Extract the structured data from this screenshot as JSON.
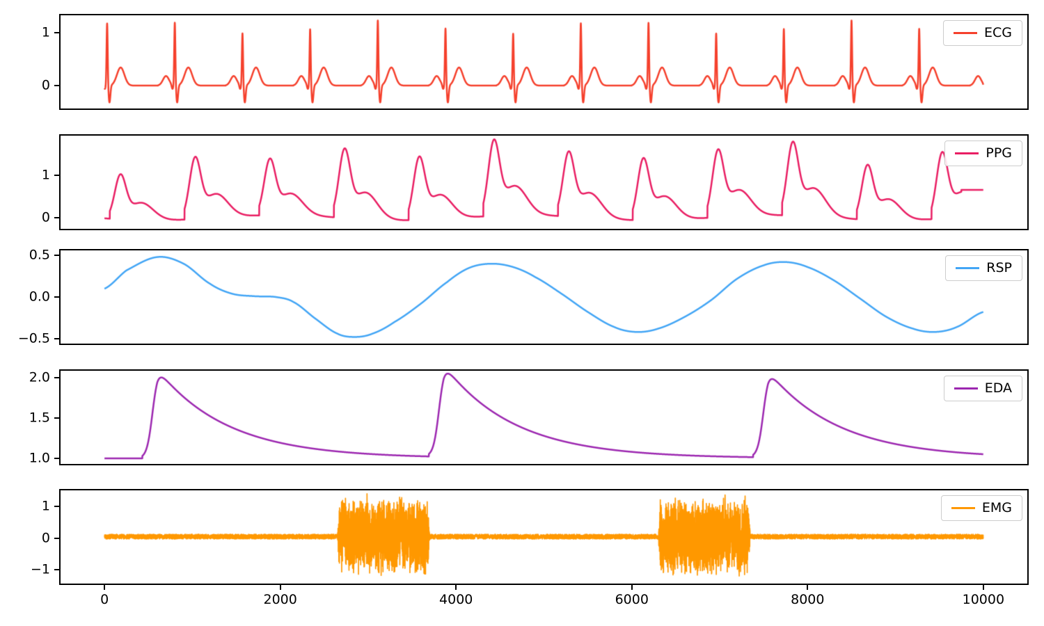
{
  "figure": {
    "background": "#ffffff",
    "n_subplots": 5,
    "kind": "stacked physiological signals (ECG, PPG, RSP, EDA, EMG)"
  },
  "xaxis": {
    "lim": [
      -500,
      10500
    ],
    "data_range": [
      0,
      10000
    ],
    "ticks": [
      0,
      2000,
      4000,
      6000,
      8000,
      10000
    ],
    "tick_labels": [
      "0",
      "2000",
      "4000",
      "6000",
      "8000",
      "10000"
    ]
  },
  "chart_data": [
    {
      "type": "line",
      "legend": "ECG",
      "color": "#F5402C",
      "ylim": [
        -0.43,
        1.32
      ],
      "yticks": [
        0,
        1
      ],
      "ytick_labels": [
        "0",
        "1"
      ],
      "n_points": 10000,
      "signal": {
        "generator": "ecg",
        "period": 770,
        "first_r_peak": 30,
        "r_amp_base": 1.1,
        "r_amp_var": 0.13,
        "p_amp": 0.18,
        "q_amp": -0.08,
        "s_amp": -0.32,
        "t_amp": 0.34
      }
    },
    {
      "type": "line",
      "legend": "PPG",
      "color": "#E91E63",
      "ylim": [
        -0.26,
        1.92
      ],
      "yticks": [
        0,
        1
      ],
      "ytick_labels": [
        "0",
        "1"
      ],
      "n_points": 10000,
      "signal": {
        "generator": "ppg",
        "period": 850,
        "first_peak": 180,
        "peak_amps": [
          1.05,
          1.45,
          1.32,
          1.62,
          1.48,
          1.78,
          1.52,
          1.45,
          1.58,
          1.72,
          1.28,
          1.55
        ],
        "dicrotic_ratio": 0.42,
        "baseline_wiggle": 0.06,
        "flat_from": 9750,
        "flat_value": 0.65
      }
    },
    {
      "type": "line",
      "legend": "RSP",
      "color": "#42A5F5",
      "ylim": [
        -0.56,
        0.56
      ],
      "yticks": [
        -0.5,
        0.0,
        0.5
      ],
      "ytick_labels": [
        "−0.5",
        "0.0",
        "0.5"
      ],
      "n_points": 10000,
      "signal": {
        "generator": "points",
        "points": [
          [
            0,
            0.1
          ],
          [
            250,
            0.32
          ],
          [
            600,
            0.48
          ],
          [
            900,
            0.4
          ],
          [
            1200,
            0.16
          ],
          [
            1450,
            0.04
          ],
          [
            1700,
            0.01
          ],
          [
            1950,
            0.0
          ],
          [
            2150,
            -0.06
          ],
          [
            2400,
            -0.26
          ],
          [
            2650,
            -0.44
          ],
          [
            2850,
            -0.48
          ],
          [
            3050,
            -0.44
          ],
          [
            3300,
            -0.3
          ],
          [
            3600,
            -0.08
          ],
          [
            3900,
            0.18
          ],
          [
            4150,
            0.35
          ],
          [
            4400,
            0.4
          ],
          [
            4650,
            0.36
          ],
          [
            4900,
            0.24
          ],
          [
            5200,
            0.04
          ],
          [
            5500,
            -0.18
          ],
          [
            5800,
            -0.36
          ],
          [
            6050,
            -0.42
          ],
          [
            6300,
            -0.38
          ],
          [
            6600,
            -0.24
          ],
          [
            6900,
            -0.04
          ],
          [
            7200,
            0.22
          ],
          [
            7500,
            0.38
          ],
          [
            7750,
            0.42
          ],
          [
            8000,
            0.36
          ],
          [
            8300,
            0.2
          ],
          [
            8600,
            -0.02
          ],
          [
            8900,
            -0.24
          ],
          [
            9200,
            -0.38
          ],
          [
            9450,
            -0.42
          ],
          [
            9700,
            -0.36
          ],
          [
            10000,
            -0.18
          ]
        ]
      }
    },
    {
      "type": "line",
      "legend": "EDA",
      "color": "#9C27B0",
      "ylim": [
        0.93,
        2.09
      ],
      "yticks": [
        1.0,
        1.5,
        2.0
      ],
      "ytick_labels": [
        "1.0",
        "1.5",
        "2.0"
      ],
      "n_points": 10000,
      "signal": {
        "generator": "eda",
        "baseline": 1.0,
        "scr_onsets": [
          430,
          3690,
          7380
        ],
        "scr_amps": [
          1.0,
          1.03,
          0.97
        ],
        "rise_tau": 32,
        "decay_tau": 800
      }
    },
    {
      "type": "line",
      "legend": "EMG",
      "color": "#FF9800",
      "ylim": [
        -1.43,
        1.51
      ],
      "yticks": [
        -1,
        0,
        1
      ],
      "ytick_labels": [
        "−1",
        "0",
        "1"
      ],
      "n_points": 10000,
      "signal": {
        "generator": "emg",
        "baseline_offset": 0.05,
        "baseline_noise": 0.075,
        "bursts": [
          [
            2650,
            3700
          ],
          [
            6300,
            7350
          ]
        ],
        "burst_amp": [
          0.75,
          1.3
        ],
        "seed": 42
      }
    }
  ]
}
